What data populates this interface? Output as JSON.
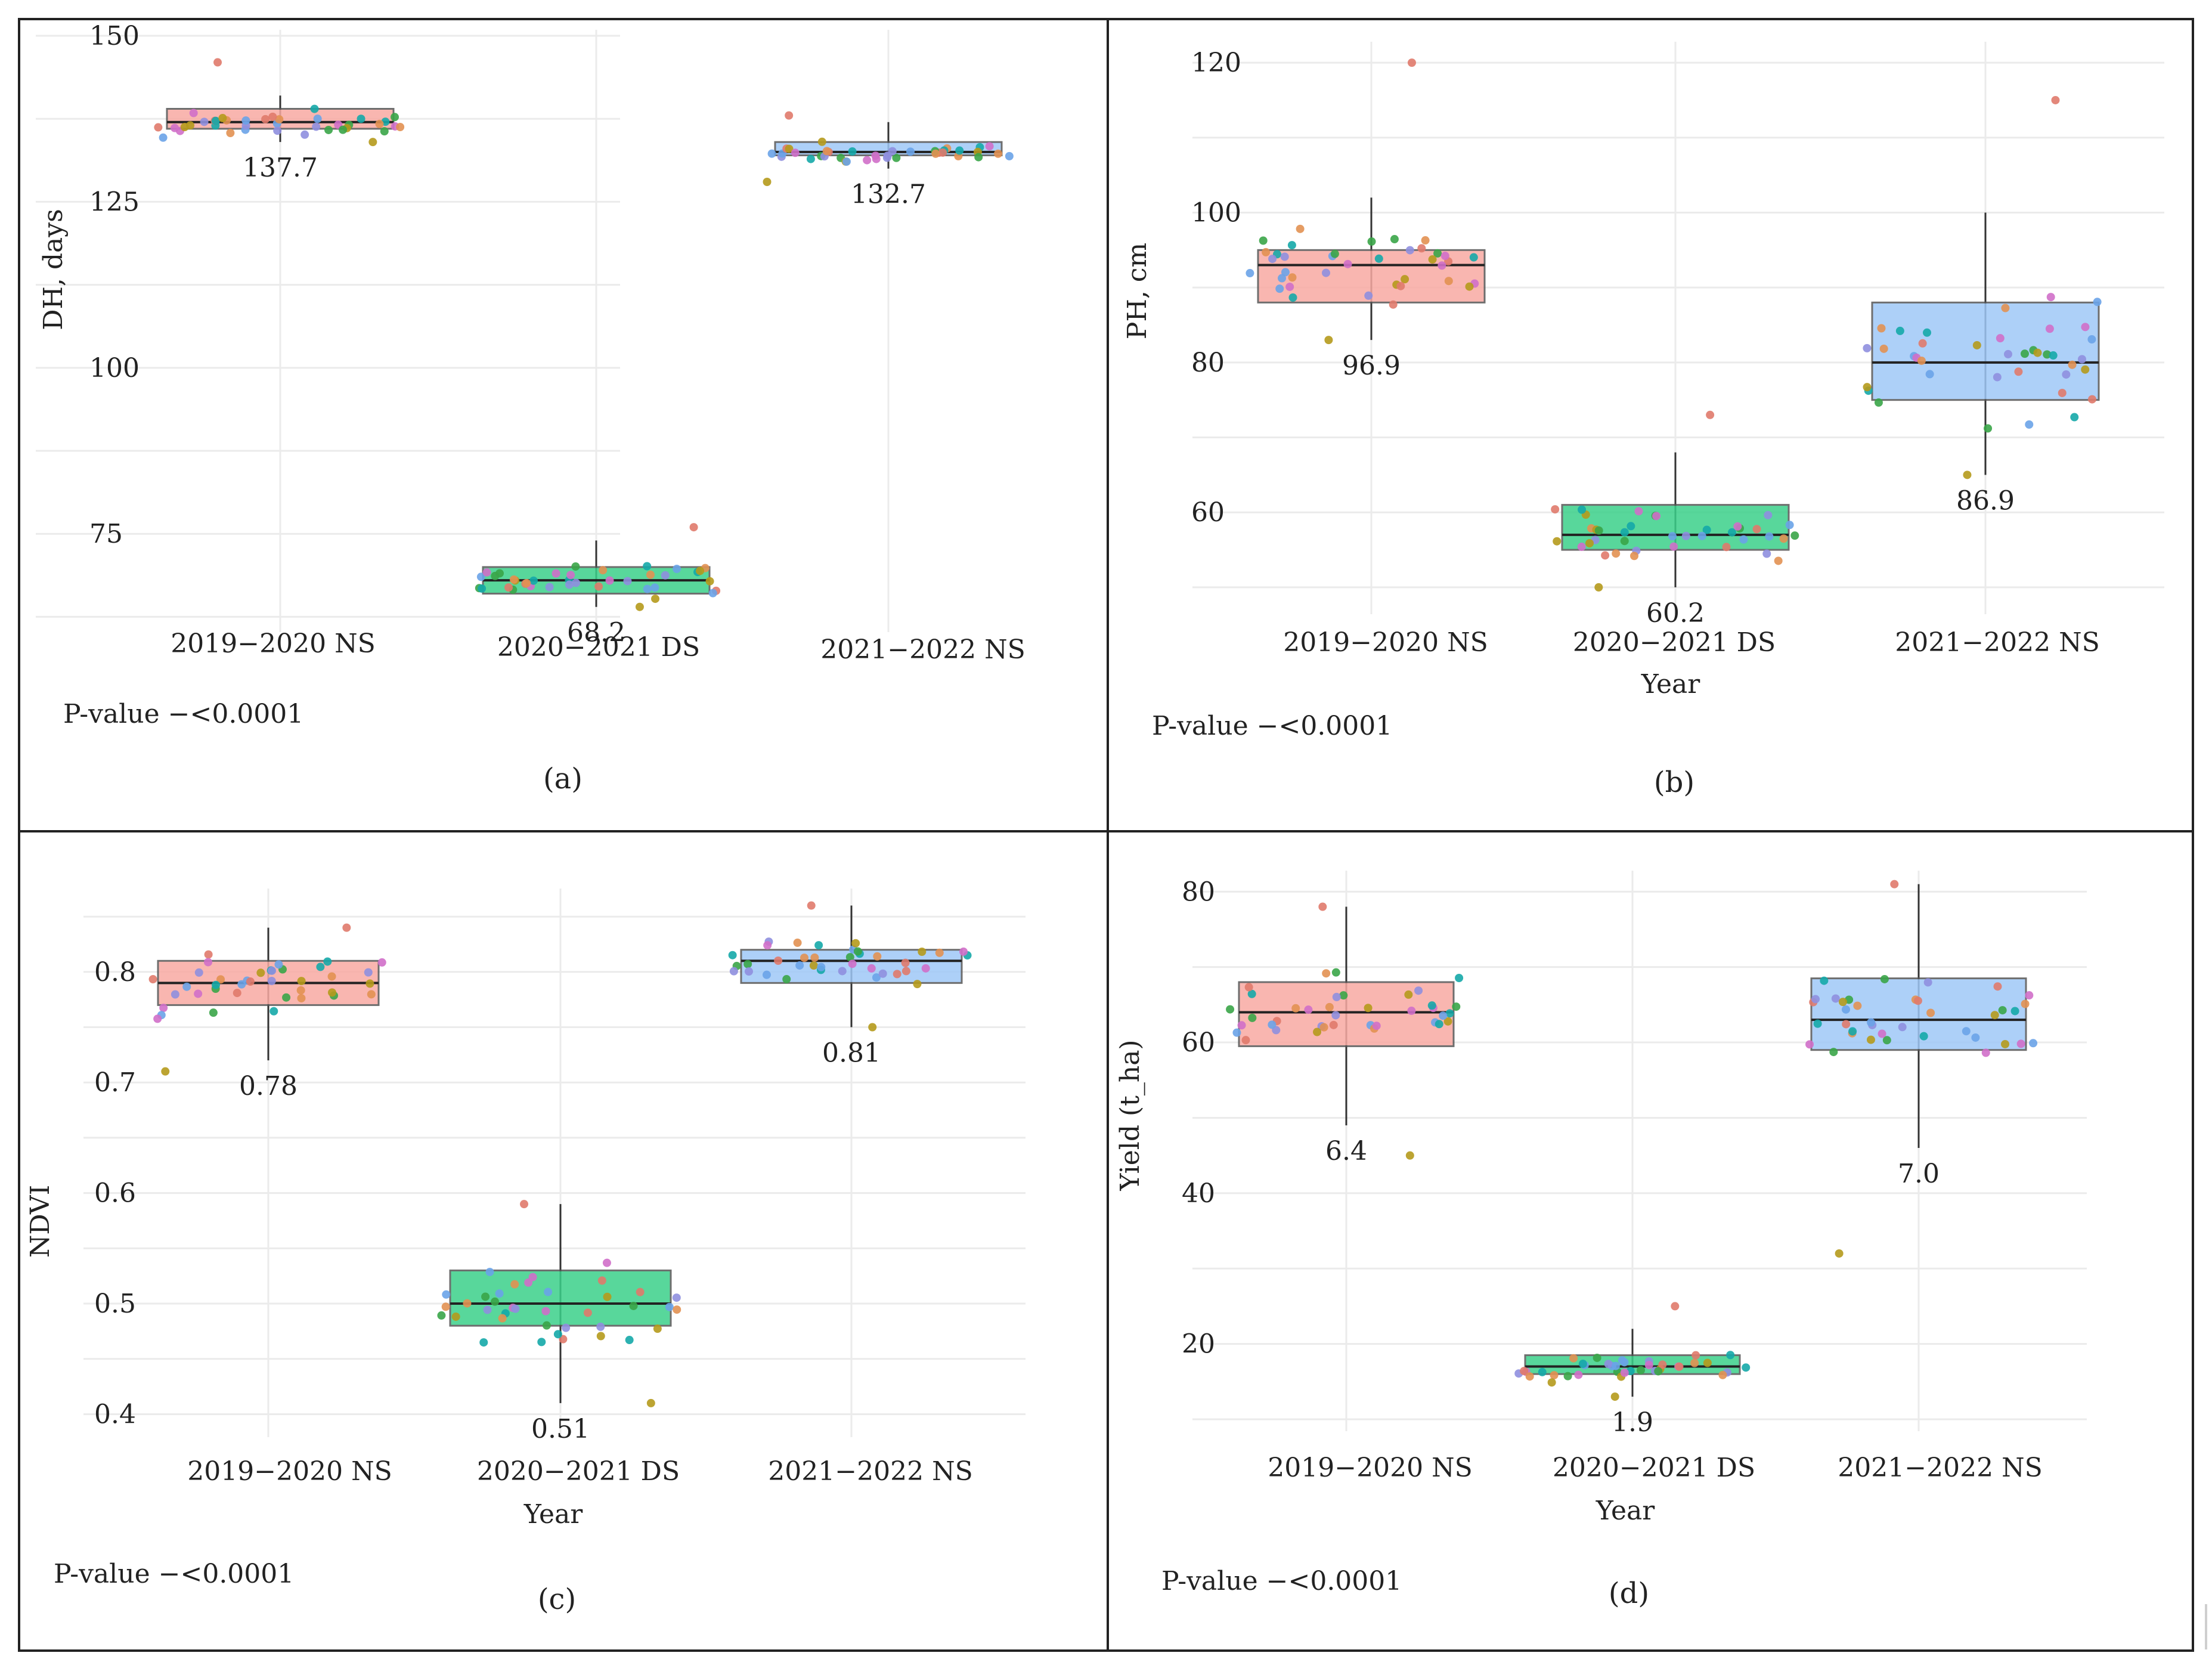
{
  "colors": {
    "box_ns_2019": "#f9aaa3",
    "box_ds_2020": "#3bd18a",
    "box_ns_2021": "#9fc8f7",
    "jitter": [
      "#e07a6b",
      "#b59a1c",
      "#3aa548",
      "#15a8a8",
      "#6aa3e8",
      "#d06fc9",
      "#8f8fdf",
      "#e29152"
    ]
  },
  "chart_data": [
    {
      "type": "box",
      "panel": "(a)",
      "ylabel": "DH, days",
      "xlabel": "",
      "ylim": [
        62,
        150
      ],
      "yticks": [
        75,
        100,
        125,
        150
      ],
      "categories": [
        "2019−2020 NS",
        "2020−2021 DS",
        "2021−2022 NS"
      ],
      "boxes": [
        {
          "q1": 136,
          "median": 137,
          "q3": 139,
          "wlow": 134,
          "whigh": 141,
          "label": "137.7",
          "pmin": 134,
          "pmax": 146
        },
        {
          "q1": 66,
          "median": 68,
          "q3": 70,
          "wlow": 64,
          "whigh": 74,
          "label": "68.2",
          "pmin": 64,
          "pmax": 76
        },
        {
          "q1": 132,
          "median": 132.5,
          "q3": 134,
          "wlow": 130,
          "whigh": 137,
          "label": "132.7",
          "pmin": 128,
          "pmax": 138
        }
      ],
      "label_pos": "below",
      "pvalue": "P-value −<0.0001"
    },
    {
      "type": "box",
      "panel": "(b)",
      "ylabel": "PH, cm",
      "xlabel": "Year",
      "ylim": [
        48,
        122
      ],
      "yticks": [
        60,
        80,
        100,
        120
      ],
      "categories": [
        "2019−2020 NS",
        "2020−2021 DS",
        "2021−2022 NS"
      ],
      "boxes": [
        {
          "q1": 88,
          "median": 93,
          "q3": 95,
          "wlow": 83,
          "whigh": 102,
          "label": "96.9",
          "pmin": 83,
          "pmax": 120
        },
        {
          "q1": 55,
          "median": 57,
          "q3": 61,
          "wlow": 50,
          "whigh": 68,
          "label": "60.2",
          "pmin": 50,
          "pmax": 73
        },
        {
          "q1": 75,
          "median": 80,
          "q3": 88,
          "wlow": 65,
          "whigh": 100,
          "label": "86.9",
          "pmin": 65,
          "pmax": 115
        }
      ],
      "label_pos": "below",
      "pvalue": "P-value −<0.0001"
    },
    {
      "type": "box",
      "panel": "(c)",
      "ylabel": "NDVI",
      "xlabel": "Year",
      "ylim": [
        0.39,
        0.87
      ],
      "yticks": [
        0.4,
        0.5,
        0.6,
        0.7,
        0.8
      ],
      "categories": [
        "2019−2020 NS",
        "2020−2021 DS",
        "2021−2022 NS"
      ],
      "boxes": [
        {
          "q1": 0.77,
          "median": 0.79,
          "q3": 0.81,
          "wlow": 0.72,
          "whigh": 0.84,
          "label": "0.78",
          "pmin": 0.71,
          "pmax": 0.84
        },
        {
          "q1": 0.48,
          "median": 0.5,
          "q3": 0.53,
          "wlow": 0.41,
          "whigh": 0.59,
          "label": "0.51",
          "pmin": 0.41,
          "pmax": 0.59
        },
        {
          "q1": 0.79,
          "median": 0.81,
          "q3": 0.82,
          "wlow": 0.75,
          "whigh": 0.86,
          "label": "0.81",
          "pmin": 0.75,
          "pmax": 0.86
        }
      ],
      "label_pos": "below",
      "pvalue": "P-value −<0.0001"
    },
    {
      "type": "box",
      "panel": "(d)",
      "ylabel": "Yield (t_ha)",
      "xlabel": "Year",
      "ylim": [
        10,
        82
      ],
      "yticks": [
        20,
        40,
        60,
        80
      ],
      "categories": [
        "2019−2020 NS",
        "2020−2021 DS",
        "2021−2022 NS"
      ],
      "boxes": [
        {
          "q1": 59.5,
          "median": 64,
          "q3": 68,
          "wlow": 49,
          "whigh": 78,
          "label": "6.4",
          "pmin": 45,
          "pmax": 78
        },
        {
          "q1": 16,
          "median": 17,
          "q3": 18.5,
          "wlow": 13,
          "whigh": 22,
          "label": "1.9",
          "pmin": 13,
          "pmax": 25
        },
        {
          "q1": 59,
          "median": 63,
          "q3": 68.5,
          "wlow": 46,
          "whigh": 81,
          "label": "7.0",
          "pmin": 32,
          "pmax": 81
        }
      ],
      "label_pos": "below",
      "pvalue": "P-value −<0.0001"
    }
  ]
}
